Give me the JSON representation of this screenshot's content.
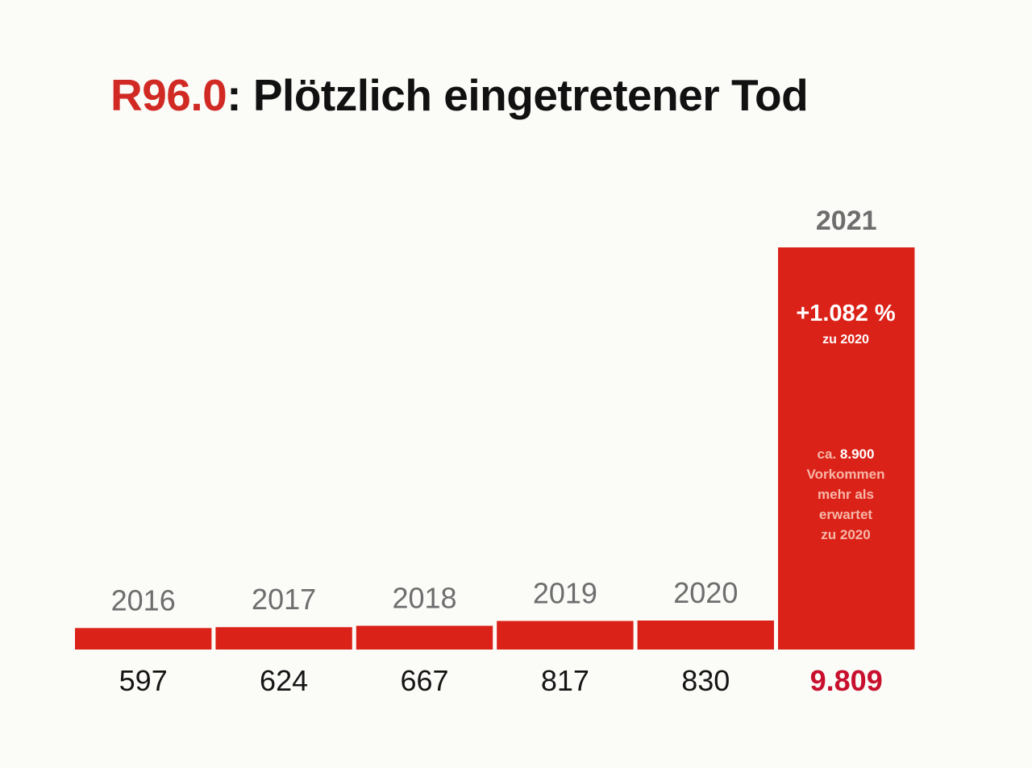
{
  "title": {
    "code": "R96.0",
    "text": ": Plötzlich eingetretener Tod"
  },
  "colors": {
    "bar": "#db2218",
    "title_code": "#d12a24",
    "highlight_value": "#c8102e",
    "year_label": "#6e6e6e",
    "value_label": "#151515",
    "background": "#fbfbf8"
  },
  "annotation": {
    "percent": "+1.082 %",
    "percent_sub": "zu 2020",
    "note_prefix": "ca. ",
    "note_value": "8.900",
    "note_lines": [
      "Vorkommen",
      "mehr als",
      "erwartet",
      "zu 2020"
    ]
  },
  "chart_data": {
    "type": "bar",
    "title": "R96.0: Plötzlich eingetretener Tod",
    "xlabel": "",
    "ylabel": "",
    "categories": [
      "2016",
      "2017",
      "2018",
      "2019",
      "2020",
      "2021"
    ],
    "values": [
      597,
      624,
      667,
      817,
      830,
      9809
    ],
    "value_labels": [
      "597",
      "624",
      "667",
      "817",
      "830",
      "9.809"
    ],
    "highlight_index": 5,
    "ylim": [
      0,
      9809
    ],
    "grid": false,
    "legend": "none",
    "note": "Small bars drawn with a visual minimum height (broken-scale style) as in the source figure"
  }
}
